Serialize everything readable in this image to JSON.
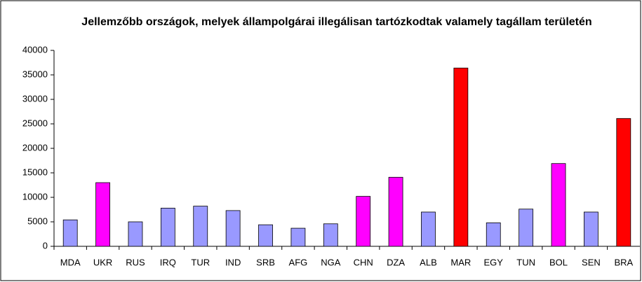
{
  "chart_data": {
    "type": "bar",
    "title": "Jellemzőbb országok, melyek állampolgárai illegálisan tartózkodtak valamely tagállam területén",
    "categories": [
      "MDA",
      "UKR",
      "RUS",
      "IRQ",
      "TUR",
      "IND",
      "SRB",
      "AFG",
      "NGA",
      "CHN",
      "DZA",
      "ALB",
      "MAR",
      "EGY",
      "TUN",
      "BOL",
      "SEN",
      "BRA"
    ],
    "values": [
      5400,
      13000,
      5000,
      7800,
      8200,
      7300,
      4400,
      3700,
      4600,
      10200,
      14100,
      7000,
      36400,
      4800,
      7600,
      16900,
      7000,
      26100
    ],
    "colors": [
      "#9999ff",
      "#ff00ff",
      "#9999ff",
      "#9999ff",
      "#9999ff",
      "#9999ff",
      "#9999ff",
      "#9999ff",
      "#9999ff",
      "#ff00ff",
      "#ff00ff",
      "#9999ff",
      "#ff0000",
      "#9999ff",
      "#9999ff",
      "#ff00ff",
      "#9999ff",
      "#ff0000"
    ],
    "ylim": [
      0,
      40000
    ],
    "yticks": [
      0,
      5000,
      10000,
      15000,
      20000,
      25000,
      30000,
      35000,
      40000
    ],
    "grid": false
  }
}
